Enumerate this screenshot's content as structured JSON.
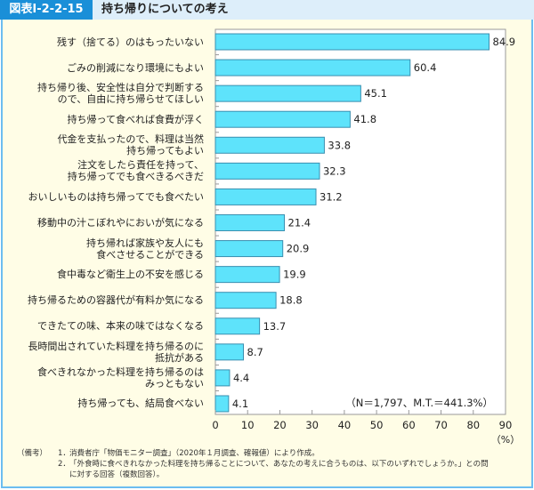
{
  "header": {
    "figure_number": "図表Ⅰ-2-2-15",
    "title": "持ち帰りについての考え"
  },
  "chart_data": {
    "type": "bar",
    "orientation": "horizontal",
    "categories": [
      "残す（捨てる）のはもったいない",
      "ごみの削減になり環境にもよい",
      "持ち帰り後、安全性は自分で判断する\nので、自由に持ち帰らせてほしい",
      "持ち帰って食べれば食費が浮く",
      "代金を支払ったので、料理は当然\n持ち帰ってもよい",
      "注文をしたら責任を持って、\n持ち帰ってでも食べきるべきだ",
      "おいしいものは持ち帰ってでも食べたい",
      "移動中の汁こぼれやにおいが気になる",
      "持ち帰れば家族や友人にも\n食べさせることができる",
      "食中毒など衛生上の不安を感じる",
      "持ち帰るための容器代が有料か気になる",
      "できたての味、本来の味ではなくなる",
      "長時間出されていた料理を持ち帰るのに\n抵抗がある",
      "食べきれなかった料理を持ち帰るのは\nみっともない",
      "持ち帰っても、結局食べない"
    ],
    "values": [
      84.9,
      60.4,
      45.1,
      41.8,
      33.8,
      32.3,
      31.2,
      21.4,
      20.9,
      19.9,
      18.8,
      13.7,
      8.7,
      4.4,
      4.1
    ],
    "value_labels": [
      "84.9",
      "60.4",
      "45.1",
      "41.8",
      "33.8",
      "32.3",
      "31.2",
      "21.4",
      "20.9",
      "19.9",
      "18.8",
      "13.7",
      "8.7",
      "4.4",
      "4.1"
    ],
    "xlim": [
      0,
      90
    ],
    "xticks": [
      "0",
      "10",
      "20",
      "30",
      "40",
      "50",
      "60",
      "70",
      "80",
      "90"
    ],
    "xlabel": "（%）",
    "annotation": "（N＝1,797、M.T.＝441.3%）",
    "bar_color": "#5ee3fb",
    "bar_edge": "#3a8fb0",
    "grid": false
  },
  "notes": {
    "label": "（備考）",
    "items": [
      {
        "n": "1．",
        "text": "消費者庁「物価モニター調査」（2020年１月調査、確報値）により作成。"
      },
      {
        "n": "2．",
        "text": "「外食時に食べきれなかった料理を持ち帰ることについて、あなたの考えに合うものは、以下のいずれでしょうか。」との問\nに対する回答（複数回答）。"
      }
    ]
  }
}
